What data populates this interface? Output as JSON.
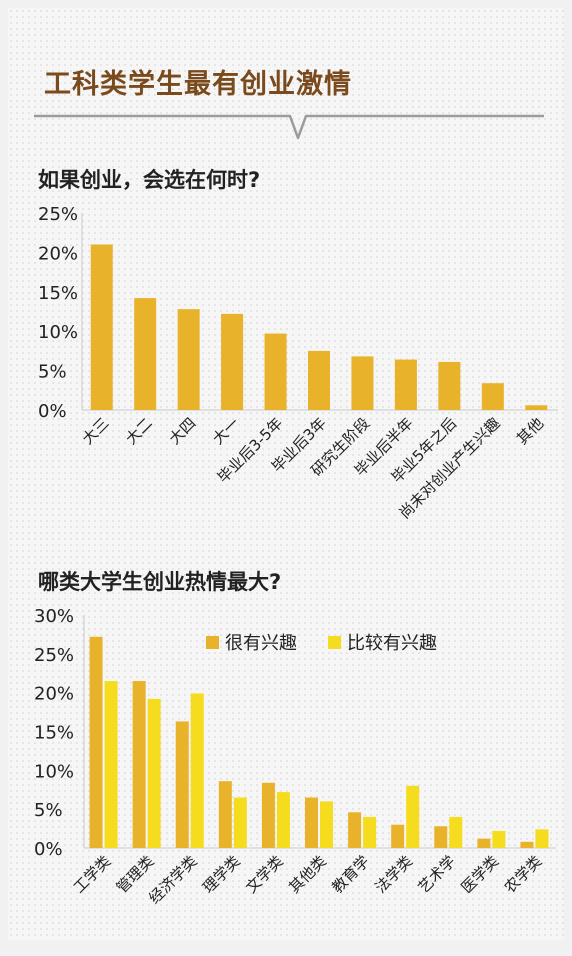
{
  "headline": "工科类学生最有创业激情",
  "colors": {
    "primary": "#e9b22b",
    "secondary": "#f6dc1f",
    "headline": "#7a4a1c",
    "text": "#222222"
  },
  "chart_data": [
    {
      "type": "bar",
      "title": "如果创业，会选在何时?",
      "categories": [
        "大三",
        "大二",
        "大四",
        "大一",
        "毕业后3-5年",
        "毕业后3年",
        "研究生阶段",
        "毕业后半年",
        "毕业5年之后",
        "尚未对创业产生兴趣",
        "其他"
      ],
      "values": [
        21,
        14.2,
        12.8,
        12.2,
        9.7,
        7.5,
        6.8,
        6.4,
        6.1,
        3.4,
        0.6
      ],
      "ylim": [
        0,
        25
      ],
      "yticks": [
        "0%",
        "5%",
        "10%",
        "15%",
        "20%",
        "25%"
      ],
      "grid": false
    },
    {
      "type": "bar",
      "title": "哪类大学生创业热情最大?",
      "categories": [
        "工学类",
        "管理类",
        "经济学类",
        "理学类",
        "文学类",
        "其他类",
        "教育学",
        "法学类",
        "艺术学",
        "医学类",
        "农学类"
      ],
      "series": [
        {
          "name": "很有兴趣",
          "values": [
            27.2,
            21.5,
            16.3,
            8.6,
            8.4,
            6.5,
            4.6,
            3.0,
            2.8,
            1.2,
            0.8
          ]
        },
        {
          "name": "比较有兴趣",
          "values": [
            21.5,
            19.2,
            19.9,
            6.5,
            7.2,
            6.0,
            4.0,
            8.0,
            4.0,
            2.2,
            2.4
          ]
        }
      ],
      "ylim": [
        0,
        30
      ],
      "yticks": [
        "0%",
        "5%",
        "10%",
        "15%",
        "20%",
        "25%",
        "30%"
      ],
      "legend": "top-right",
      "grid": false
    }
  ]
}
